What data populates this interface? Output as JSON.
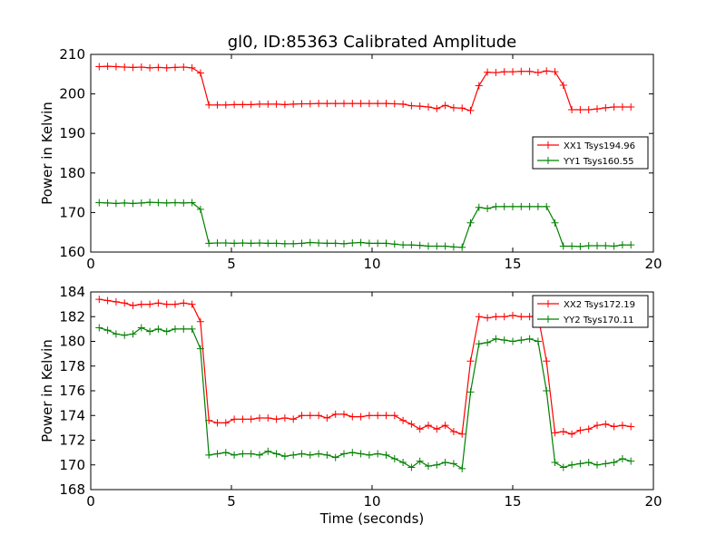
{
  "title": "gl0, ID:85363 Calibrated Amplitude",
  "colors": {
    "red": "#ff0000",
    "green": "#008000",
    "axis": "#000000"
  },
  "chart_data": [
    {
      "type": "line",
      "xlabel": "",
      "ylabel": "Power in Kelvin",
      "xlim": [
        0,
        20
      ],
      "ylim": [
        160,
        210
      ],
      "xticks": [
        "0",
        "5",
        "10",
        "15",
        "20"
      ],
      "yticks": [
        "160",
        "170",
        "180",
        "190",
        "200",
        "210"
      ],
      "legend_position": "right",
      "grid": false,
      "x": [
        0.3,
        0.6,
        0.9,
        1.2,
        1.5,
        1.8,
        2.1,
        2.4,
        2.7,
        3.0,
        3.3,
        3.6,
        3.9,
        4.2,
        4.5,
        4.8,
        5.1,
        5.4,
        5.7,
        6.0,
        6.3,
        6.6,
        6.9,
        7.2,
        7.5,
        7.8,
        8.1,
        8.4,
        8.7,
        9.0,
        9.3,
        9.6,
        9.9,
        10.2,
        10.5,
        10.8,
        11.1,
        11.4,
        11.7,
        12.0,
        12.3,
        12.6,
        12.9,
        13.2,
        13.5,
        13.8,
        14.1,
        14.4,
        14.7,
        15.0,
        15.3,
        15.6,
        15.9,
        16.2,
        16.5,
        16.8,
        17.1,
        17.4,
        17.7,
        18.0,
        18.3,
        18.6,
        18.9,
        19.2
      ],
      "series": [
        {
          "name": "XX1 Tsys194.96",
          "color": "#ff0000",
          "values": [
            206.9,
            207.0,
            206.9,
            206.8,
            206.7,
            206.8,
            206.6,
            206.7,
            206.6,
            206.7,
            206.8,
            206.6,
            205.3,
            197.2,
            197.2,
            197.2,
            197.3,
            197.3,
            197.3,
            197.4,
            197.4,
            197.4,
            197.3,
            197.4,
            197.5,
            197.5,
            197.6,
            197.6,
            197.6,
            197.6,
            197.6,
            197.6,
            197.6,
            197.6,
            197.6,
            197.5,
            197.4,
            197.0,
            196.9,
            196.7,
            196.3,
            197.1,
            196.5,
            196.4,
            195.8,
            202.1,
            205.5,
            205.4,
            205.6,
            205.6,
            205.7,
            205.7,
            205.4,
            205.8,
            205.6,
            202.2,
            196.0,
            196.0,
            196.0,
            196.2,
            196.5,
            196.7,
            196.7,
            196.7
          ]
        },
        {
          "name": "YY1 Tsys160.55",
          "color": "#008000",
          "values": [
            172.5,
            172.4,
            172.3,
            172.4,
            172.3,
            172.4,
            172.6,
            172.5,
            172.4,
            172.5,
            172.4,
            172.5,
            170.8,
            162.2,
            162.3,
            162.3,
            162.2,
            162.3,
            162.2,
            162.3,
            162.2,
            162.2,
            162.1,
            162.1,
            162.2,
            162.4,
            162.3,
            162.2,
            162.2,
            162.1,
            162.3,
            162.4,
            162.2,
            162.2,
            162.2,
            162.0,
            161.8,
            161.8,
            161.7,
            161.5,
            161.5,
            161.5,
            161.3,
            161.2,
            167.4,
            171.3,
            171.0,
            171.5,
            171.5,
            171.5,
            171.5,
            171.5,
            171.5,
            171.5,
            167.4,
            161.5,
            161.5,
            161.4,
            161.6,
            161.6,
            161.6,
            161.5,
            161.8,
            161.8
          ]
        }
      ]
    },
    {
      "type": "line",
      "xlabel": "Time (seconds)",
      "ylabel": "Power in Kelvin",
      "xlim": [
        0,
        20
      ],
      "ylim": [
        168,
        184
      ],
      "xticks": [
        "0",
        "5",
        "10",
        "15",
        "20"
      ],
      "yticks": [
        "168",
        "170",
        "172",
        "174",
        "176",
        "178",
        "180",
        "182",
        "184"
      ],
      "legend_position": "top-right",
      "grid": false,
      "x": [
        0.3,
        0.6,
        0.9,
        1.2,
        1.5,
        1.8,
        2.1,
        2.4,
        2.7,
        3.0,
        3.3,
        3.6,
        3.9,
        4.2,
        4.5,
        4.8,
        5.1,
        5.4,
        5.7,
        6.0,
        6.3,
        6.6,
        6.9,
        7.2,
        7.5,
        7.8,
        8.1,
        8.4,
        8.7,
        9.0,
        9.3,
        9.6,
        9.9,
        10.2,
        10.5,
        10.8,
        11.1,
        11.4,
        11.7,
        12.0,
        12.3,
        12.6,
        12.9,
        13.2,
        13.5,
        13.8,
        14.1,
        14.4,
        14.7,
        15.0,
        15.3,
        15.6,
        15.9,
        16.2,
        16.5,
        16.8,
        17.1,
        17.4,
        17.7,
        18.0,
        18.3,
        18.6,
        18.9,
        19.2
      ],
      "series": [
        {
          "name": "XX2 Tsys172.19",
          "color": "#ff0000",
          "values": [
            183.4,
            183.3,
            183.2,
            183.1,
            182.9,
            183.0,
            183.0,
            183.1,
            183.0,
            183.0,
            183.1,
            183.0,
            181.6,
            173.6,
            173.4,
            173.4,
            173.7,
            173.7,
            173.7,
            173.8,
            173.8,
            173.7,
            173.8,
            173.7,
            174.0,
            174.0,
            174.0,
            173.8,
            174.1,
            174.1,
            173.9,
            173.9,
            174.0,
            174.0,
            174.0,
            174.0,
            173.6,
            173.3,
            172.9,
            173.2,
            172.9,
            173.2,
            172.7,
            172.5,
            178.4,
            182.0,
            181.9,
            182.0,
            182.0,
            182.1,
            182.0,
            182.0,
            182.1,
            178.4,
            172.6,
            172.7,
            172.5,
            172.8,
            172.9,
            173.2,
            173.3,
            173.1,
            173.2,
            173.1
          ]
        },
        {
          "name": "YY2 Tsys170.11",
          "color": "#008000",
          "values": [
            181.1,
            180.9,
            180.6,
            180.5,
            180.6,
            181.1,
            180.8,
            181.0,
            180.8,
            181.0,
            181.0,
            181.0,
            179.4,
            170.8,
            170.9,
            171.0,
            170.8,
            170.9,
            170.9,
            170.8,
            171.1,
            170.9,
            170.7,
            170.8,
            170.9,
            170.8,
            170.9,
            170.8,
            170.6,
            170.9,
            171.0,
            170.9,
            170.8,
            170.9,
            170.8,
            170.5,
            170.2,
            169.8,
            170.3,
            169.9,
            170.0,
            170.2,
            170.1,
            169.7,
            175.9,
            179.8,
            179.9,
            180.2,
            180.1,
            180.0,
            180.1,
            180.2,
            180.0,
            176.0,
            170.2,
            169.8,
            170.0,
            170.1,
            170.2,
            170.0,
            170.1,
            170.2,
            170.5,
            170.3
          ]
        }
      ]
    }
  ]
}
